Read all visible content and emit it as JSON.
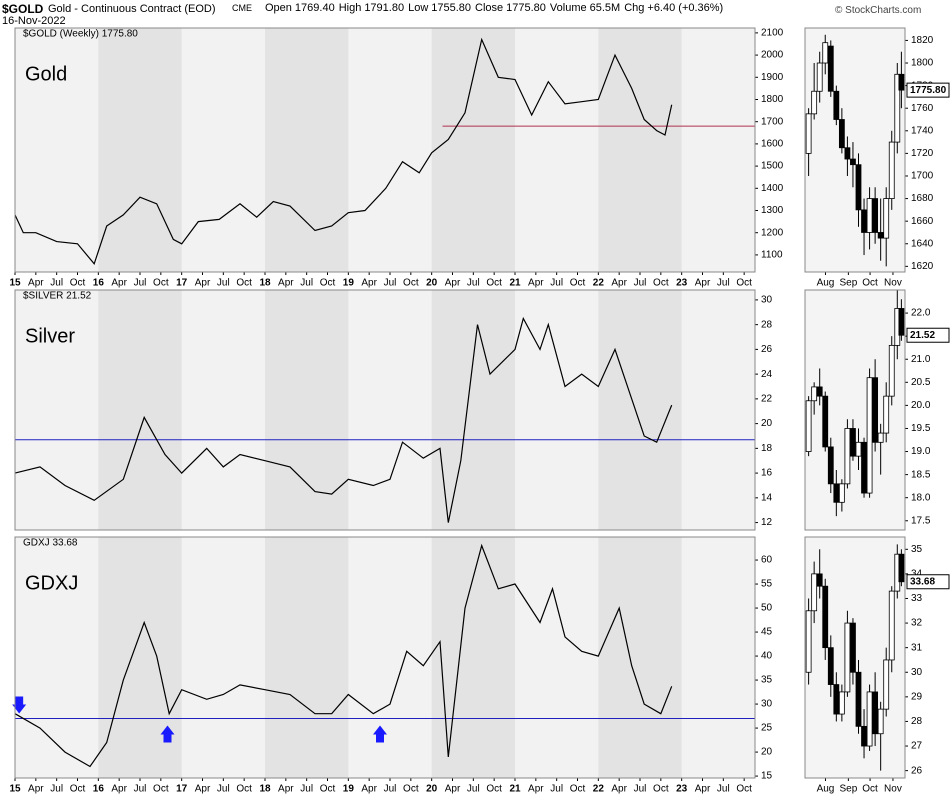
{
  "header": {
    "symbol": "$GOLD",
    "description": "Gold - Continuous Contract (EOD)",
    "exchange": "CME",
    "date": "16-Nov-2022",
    "copyright": "© StockCharts.com",
    "stats": [
      {
        "label": "Open",
        "value": "1769.40"
      },
      {
        "label": "High",
        "value": "1791.80"
      },
      {
        "label": "Low",
        "value": "1755.80"
      },
      {
        "label": "Close",
        "value": "1775.80"
      },
      {
        "label": "Volume",
        "value": "65.5M"
      },
      {
        "label": "Chg",
        "value": "+6.40 (+0.36%)"
      }
    ]
  },
  "chart_data": [
    {
      "type": "line",
      "legend": "$GOLD (Weekly) 1775.80",
      "label": "Gold",
      "color": "#000000",
      "year_shading": true,
      "x": [
        2015.0,
        2015.1,
        2015.25,
        2015.5,
        2015.75,
        2015.95,
        2016.1,
        2016.3,
        2016.5,
        2016.7,
        2016.9,
        2017.0,
        2017.2,
        2017.45,
        2017.7,
        2017.9,
        2018.1,
        2018.3,
        2018.6,
        2018.8,
        2019.0,
        2019.2,
        2019.45,
        2019.65,
        2019.85,
        2020.0,
        2020.2,
        2020.4,
        2020.6,
        2020.8,
        2021.0,
        2021.2,
        2021.4,
        2021.6,
        2021.8,
        2022.0,
        2022.2,
        2022.4,
        2022.55,
        2022.7,
        2022.8,
        2022.88
      ],
      "values": [
        1280,
        1200,
        1200,
        1160,
        1150,
        1060,
        1230,
        1280,
        1360,
        1330,
        1170,
        1150,
        1250,
        1260,
        1330,
        1270,
        1340,
        1320,
        1210,
        1230,
        1290,
        1300,
        1400,
        1520,
        1470,
        1560,
        1620,
        1740,
        2070,
        1900,
        1890,
        1730,
        1880,
        1780,
        1790,
        1800,
        2000,
        1850,
        1710,
        1660,
        1640,
        1776
      ],
      "xlim": [
        2015,
        2023.88
      ],
      "ylim": [
        1023,
        2122
      ],
      "yticks": [
        1100,
        1200,
        1300,
        1400,
        1500,
        1600,
        1700,
        1800,
        1900,
        2000,
        2100
      ],
      "xticks": [
        {
          "value": 2015,
          "label": "15"
        },
        {
          "value": 2015.25,
          "label": "Apr"
        },
        {
          "value": 2015.5,
          "label": "Jul"
        },
        {
          "value": 2015.75,
          "label": "Oct"
        },
        {
          "value": 2016,
          "label": "16"
        },
        {
          "value": 2016.25,
          "label": "Apr"
        },
        {
          "value": 2016.5,
          "label": "Jul"
        },
        {
          "value": 2016.75,
          "label": "Oct"
        },
        {
          "value": 2017,
          "label": "17"
        },
        {
          "value": 2017.25,
          "label": "Apr"
        },
        {
          "value": 2017.5,
          "label": "Jul"
        },
        {
          "value": 2017.75,
          "label": "Oct"
        },
        {
          "value": 2018,
          "label": "18"
        },
        {
          "value": 2018.25,
          "label": "Apr"
        },
        {
          "value": 2018.5,
          "label": "Jul"
        },
        {
          "value": 2018.75,
          "label": "Oct"
        },
        {
          "value": 2019,
          "label": "19"
        },
        {
          "value": 2019.25,
          "label": "Apr"
        },
        {
          "value": 2019.5,
          "label": "Jul"
        },
        {
          "value": 2019.75,
          "label": "Oct"
        },
        {
          "value": 2020,
          "label": "20"
        },
        {
          "value": 2020.25,
          "label": "Apr"
        },
        {
          "value": 2020.5,
          "label": "Jul"
        },
        {
          "value": 2020.75,
          "label": "Oct"
        },
        {
          "value": 2021,
          "label": "21"
        },
        {
          "value": 2021.25,
          "label": "Apr"
        },
        {
          "value": 2021.5,
          "label": "Jul"
        },
        {
          "value": 2021.75,
          "label": "Oct"
        },
        {
          "value": 2022,
          "label": "22"
        },
        {
          "value": 2022.25,
          "label": "Apr"
        },
        {
          "value": 2022.5,
          "label": "Jul"
        },
        {
          "value": 2022.75,
          "label": "Oct"
        },
        {
          "value": 2023,
          "label": "23"
        },
        {
          "value": 2023.25,
          "label": "Apr"
        },
        {
          "value": 2023.5,
          "label": "Jul"
        },
        {
          "value": 2023.75,
          "label": "Oct"
        }
      ],
      "hline": {
        "value": 1680,
        "x_start": 2020.13,
        "color": "#b03050"
      }
    },
    {
      "type": "line",
      "legend": "$SILVER 21.52",
      "label": "Silver",
      "color": "#000000",
      "year_shading": true,
      "x": [
        2015.0,
        2015.3,
        2015.6,
        2015.95,
        2016.3,
        2016.55,
        2016.8,
        2017.0,
        2017.3,
        2017.5,
        2017.7,
        2018.0,
        2018.3,
        2018.6,
        2018.8,
        2019.0,
        2019.3,
        2019.5,
        2019.65,
        2019.9,
        2020.1,
        2020.2,
        2020.35,
        2020.55,
        2020.7,
        2021.0,
        2021.1,
        2021.3,
        2021.4,
        2021.6,
        2021.8,
        2022.0,
        2022.2,
        2022.4,
        2022.55,
        2022.7,
        2022.88
      ],
      "values": [
        16,
        16.5,
        15,
        13.8,
        15.5,
        20.5,
        17.5,
        16,
        18,
        16.5,
        17.5,
        17,
        16.5,
        14.5,
        14.3,
        15.5,
        15,
        15.5,
        18.5,
        17.2,
        18,
        12,
        17,
        28,
        24,
        26,
        28.5,
        26,
        28,
        23,
        24,
        23,
        26,
        22,
        19,
        18.5,
        21.5
      ],
      "xlim": [
        2015,
        2023.88
      ],
      "ylim": [
        11.4,
        30.8
      ],
      "yticks": [
        12,
        14,
        16,
        18,
        20,
        22,
        24,
        26,
        28,
        30
      ],
      "hline": {
        "value": 18.7,
        "x_start": 2015,
        "color": "#2020c0"
      }
    },
    {
      "type": "line",
      "legend": "GDXJ 33.68",
      "label": "GDXJ",
      "color": "#000000",
      "year_shading": true,
      "x": [
        2015.0,
        2015.3,
        2015.6,
        2015.9,
        2016.1,
        2016.3,
        2016.55,
        2016.7,
        2016.85,
        2017.0,
        2017.3,
        2017.5,
        2017.7,
        2018.0,
        2018.3,
        2018.6,
        2018.8,
        2019.0,
        2019.3,
        2019.5,
        2019.7,
        2019.9,
        2020.1,
        2020.2,
        2020.4,
        2020.6,
        2020.8,
        2021.0,
        2021.3,
        2021.45,
        2021.6,
        2021.8,
        2022.0,
        2022.25,
        2022.4,
        2022.55,
        2022.75,
        2022.88
      ],
      "values": [
        28,
        25,
        20,
        17,
        22,
        35,
        47,
        40,
        28,
        33,
        31,
        32,
        34,
        33,
        32,
        28,
        28,
        32,
        28,
        30,
        41,
        38,
        43,
        19,
        50,
        63,
        54,
        55,
        47,
        54,
        44,
        41,
        40,
        50,
        38,
        30,
        28,
        33.7
      ],
      "xlim": [
        2015,
        2023.88
      ],
      "ylim": [
        14.6,
        64.8
      ],
      "yticks": [
        15,
        20,
        25,
        30,
        35,
        40,
        45,
        50,
        55,
        60
      ],
      "xticks": [
        {
          "value": 2015,
          "label": "15"
        },
        {
          "value": 2015.25,
          "label": "Apr"
        },
        {
          "value": 2015.5,
          "label": "Jul"
        },
        {
          "value": 2015.75,
          "label": "Oct"
        },
        {
          "value": 2016,
          "label": "16"
        },
        {
          "value": 2016.25,
          "label": "Apr"
        },
        {
          "value": 2016.5,
          "label": "Jul"
        },
        {
          "value": 2016.75,
          "label": "Oct"
        },
        {
          "value": 2017,
          "label": "17"
        },
        {
          "value": 2017.25,
          "label": "Apr"
        },
        {
          "value": 2017.5,
          "label": "Jul"
        },
        {
          "value": 2017.75,
          "label": "Oct"
        },
        {
          "value": 2018,
          "label": "18"
        },
        {
          "value": 2018.25,
          "label": "Apr"
        },
        {
          "value": 2018.5,
          "label": "Jul"
        },
        {
          "value": 2018.75,
          "label": "Oct"
        },
        {
          "value": 2019,
          "label": "19"
        },
        {
          "value": 2019.25,
          "label": "Apr"
        },
        {
          "value": 2019.5,
          "label": "Jul"
        },
        {
          "value": 2019.75,
          "label": "Oct"
        },
        {
          "value": 2020,
          "label": "20"
        },
        {
          "value": 2020.25,
          "label": "Apr"
        },
        {
          "value": 2020.5,
          "label": "Jul"
        },
        {
          "value": 2020.75,
          "label": "Oct"
        },
        {
          "value": 2021,
          "label": "21"
        },
        {
          "value": 2021.25,
          "label": "Apr"
        },
        {
          "value": 2021.5,
          "label": "Jul"
        },
        {
          "value": 2021.75,
          "label": "Oct"
        },
        {
          "value": 2022,
          "label": "22"
        },
        {
          "value": 2022.25,
          "label": "Apr"
        },
        {
          "value": 2022.5,
          "label": "Jul"
        },
        {
          "value": 2022.75,
          "label": "Oct"
        },
        {
          "value": 2023,
          "label": "23"
        },
        {
          "value": 2023.25,
          "label": "Apr"
        },
        {
          "value": 2023.5,
          "label": "Jul"
        },
        {
          "value": 2023.75,
          "label": "Oct"
        }
      ],
      "hline": {
        "value": 27,
        "x_start": 2015,
        "color": "#2020c0"
      },
      "annotations": [
        {
          "x": 2015.05,
          "direction": "down",
          "color": "#1a1aff"
        },
        {
          "x": 2016.83,
          "direction": "up",
          "color": "#1a1aff"
        },
        {
          "x": 2019.38,
          "direction": "up",
          "color": "#1a1aff"
        }
      ]
    },
    {
      "type": "candlestick",
      "last_label": "1775.80",
      "x": [
        7.75,
        7.98,
        8.21,
        8.44,
        8.67,
        8.9,
        9.13,
        9.36,
        9.59,
        9.82,
        10.05,
        10.28,
        10.51,
        10.74,
        10.97,
        11.2,
        11.43,
        11.6
      ],
      "open": [
        1720,
        1755,
        1775,
        1800,
        1815,
        1775,
        1750,
        1725,
        1715,
        1710,
        1670,
        1650,
        1680,
        1650,
        1645,
        1680,
        1730,
        1790
      ],
      "high": [
        1760,
        1800,
        1810,
        1825,
        1820,
        1780,
        1760,
        1735,
        1730,
        1720,
        1680,
        1690,
        1690,
        1680,
        1690,
        1740,
        1800,
        1810
      ],
      "low": [
        1700,
        1750,
        1765,
        1790,
        1770,
        1745,
        1720,
        1700,
        1690,
        1655,
        1630,
        1635,
        1640,
        1625,
        1620,
        1670,
        1720,
        1760
      ],
      "close": [
        1755,
        1775,
        1800,
        1818,
        1775,
        1750,
        1725,
        1715,
        1710,
        1670,
        1650,
        1680,
        1650,
        1645,
        1680,
        1730,
        1790,
        1776
      ],
      "xlim": [
        7.6,
        11.75
      ],
      "ylim": [
        1615,
        1831
      ],
      "yticks": [
        1620,
        1640,
        1660,
        1680,
        1700,
        1720,
        1740,
        1760,
        1780,
        1800,
        1820
      ],
      "xticks": [
        {
          "value": 8.45,
          "label": "Aug"
        },
        {
          "value": 9.4,
          "label": "Sep"
        },
        {
          "value": 10.3,
          "label": "Oct"
        },
        {
          "value": 11.25,
          "label": "Nov"
        }
      ]
    },
    {
      "type": "candlestick",
      "last_label": "21.52",
      "x": [
        7.75,
        7.98,
        8.21,
        8.44,
        8.67,
        8.9,
        9.13,
        9.36,
        9.59,
        9.82,
        10.05,
        10.28,
        10.51,
        10.74,
        10.97,
        11.2,
        11.43,
        11.6
      ],
      "open": [
        19.0,
        20.1,
        20.4,
        20.2,
        19.1,
        18.3,
        17.9,
        18.3,
        19.5,
        18.9,
        19.2,
        18.1,
        20.6,
        19.2,
        19.4,
        20.2,
        21.3,
        22.1
      ],
      "high": [
        20.2,
        20.5,
        20.8,
        20.3,
        19.3,
        18.6,
        18.4,
        19.7,
        19.7,
        19.5,
        19.3,
        20.8,
        21.0,
        19.6,
        20.5,
        21.5,
        22.5,
        22.3
      ],
      "low": [
        18.9,
        19.8,
        20.0,
        19.0,
        18.1,
        17.6,
        17.7,
        18.2,
        18.8,
        18.6,
        18.0,
        18.0,
        19.0,
        18.5,
        19.2,
        20.0,
        21.0,
        21.4
      ],
      "close": [
        20.1,
        20.4,
        20.2,
        19.1,
        18.3,
        17.9,
        18.3,
        19.5,
        18.9,
        19.2,
        18.1,
        20.6,
        19.2,
        19.4,
        20.2,
        21.3,
        22.1,
        21.52
      ],
      "xlim": [
        7.6,
        11.75
      ],
      "ylim": [
        17.3,
        22.5
      ],
      "yticks": [
        17.5,
        {
          "value": 18,
          "label": "18.0"
        },
        18.5,
        {
          "value": 19,
          "label": "19.0"
        },
        19.5,
        {
          "value": 20,
          "label": "20.0"
        },
        20.5,
        {
          "value": 21,
          "label": "21.0"
        },
        21.5,
        {
          "value": 22,
          "label": "22.0"
        }
      ]
    },
    {
      "type": "candlestick",
      "last_label": "33.68",
      "x": [
        7.75,
        7.98,
        8.21,
        8.44,
        8.67,
        8.9,
        9.13,
        9.36,
        9.59,
        9.82,
        10.05,
        10.28,
        10.51,
        10.74,
        10.97,
        11.2,
        11.43,
        11.6
      ],
      "open": [
        30,
        32.5,
        34,
        33.5,
        31,
        29.5,
        28.3,
        29.2,
        32,
        30,
        27.8,
        27,
        29.2,
        27.5,
        28.5,
        30.5,
        33.3,
        34.8
      ],
      "high": [
        33,
        34.5,
        35,
        33.8,
        31.5,
        30,
        29.5,
        32.5,
        32.2,
        30.5,
        28.5,
        29.5,
        30,
        28.8,
        31,
        33.5,
        35.2,
        35
      ],
      "low": [
        29.5,
        32,
        33,
        30.5,
        29,
        28,
        28,
        29,
        29.5,
        27.5,
        26.5,
        26.8,
        27,
        26,
        28.2,
        30,
        33,
        33.5
      ],
      "close": [
        32.5,
        34,
        33.5,
        31,
        29.5,
        28.3,
        29.2,
        32,
        30,
        27.8,
        27,
        29.2,
        27.5,
        28.5,
        30.5,
        33.3,
        34.8,
        33.68
      ],
      "xlim": [
        7.6,
        11.75
      ],
      "ylim": [
        25.7,
        35.5
      ],
      "yticks": [
        26,
        27,
        28,
        29,
        30,
        31,
        32,
        33,
        34,
        35
      ],
      "xticks": [
        {
          "value": 8.45,
          "label": "Aug"
        },
        {
          "value": 9.4,
          "label": "Sep"
        },
        {
          "value": 10.3,
          "label": "Oct"
        },
        {
          "value": 11.25,
          "label": "Nov"
        }
      ]
    }
  ]
}
